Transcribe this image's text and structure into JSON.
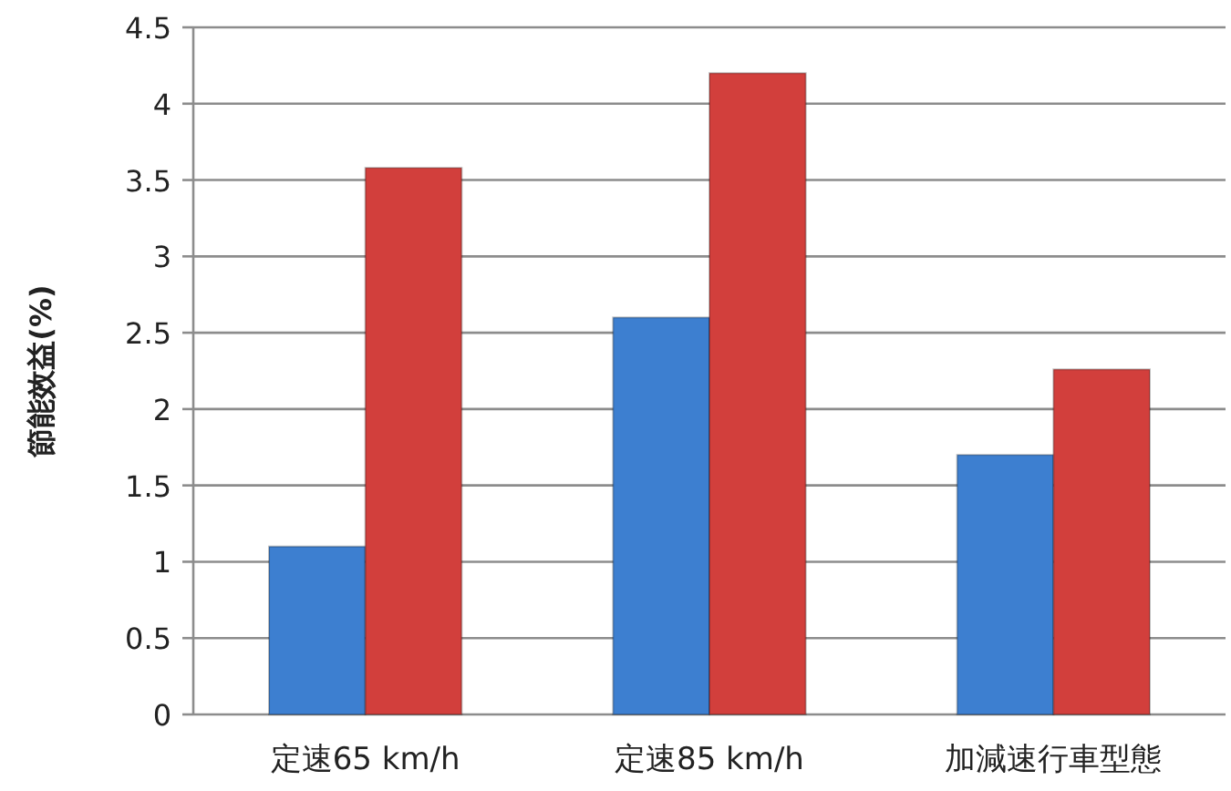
{
  "chart_data": {
    "type": "bar",
    "ylabel": "節能效益(%)",
    "categories": [
      "定速65 km/h",
      "定速85 km/h",
      "加減速行車型態"
    ],
    "series": [
      {
        "color": "#3d7fd0",
        "values": [
          1.1,
          2.6,
          1.7
        ]
      },
      {
        "color": "#d23f3c",
        "values": [
          3.58,
          4.2,
          2.26
        ]
      }
    ],
    "ylim": [
      0,
      4.5
    ],
    "yticks": [
      0,
      0.5,
      1,
      1.5,
      2,
      2.5,
      3,
      3.5,
      4,
      4.5
    ],
    "grid": "y"
  }
}
